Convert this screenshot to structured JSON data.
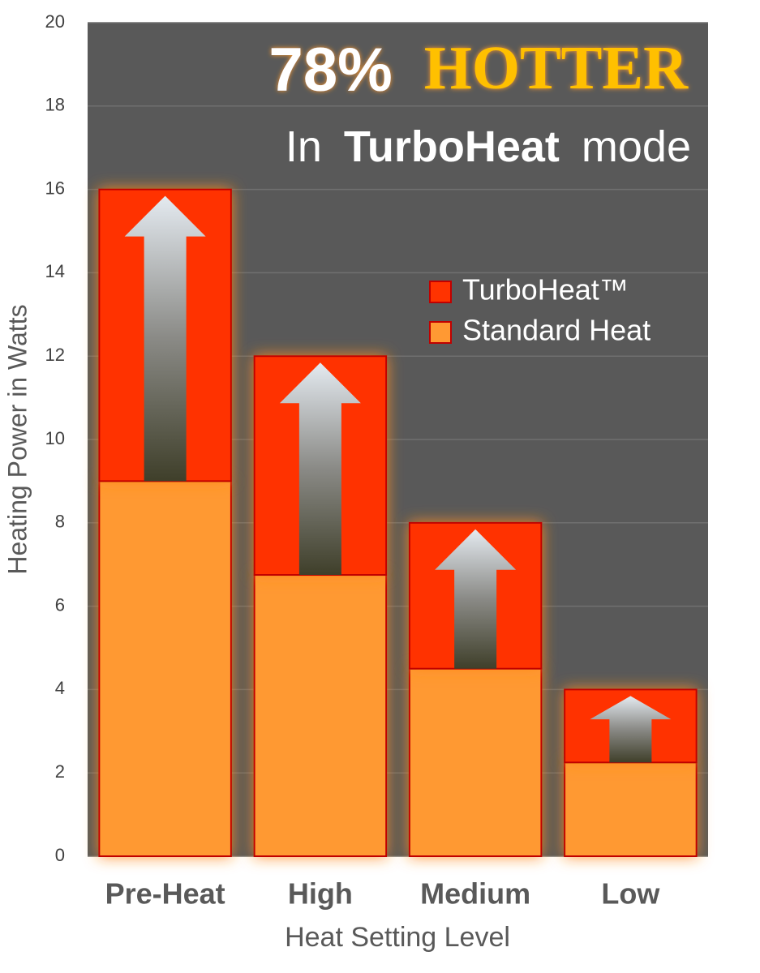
{
  "chart_data": {
    "type": "stacked_bar",
    "title": [
      "78%",
      "HOTTER"
    ],
    "subtitle": [
      "In",
      "TurboHeat",
      "mode"
    ],
    "x_label": "Heat Setting Level",
    "y_label": "Heating Power in Watts",
    "categories": [
      "Pre-Heat",
      "High",
      "Medium",
      "Low"
    ],
    "series": [
      {
        "name": "Standard Heat",
        "color": "#ff9933",
        "values": [
          9,
          6.75,
          4.5,
          2.25
        ]
      },
      {
        "name": "TurboHeat™",
        "color": "#ff3300",
        "values": [
          7,
          5.25,
          3.5,
          1.75
        ]
      }
    ],
    "legend_order": [
      1,
      0
    ],
    "ylim": [
      0,
      20
    ],
    "yticks": [
      0,
      2,
      4,
      6,
      8,
      10,
      12,
      14,
      16,
      18,
      20
    ],
    "grid": true
  }
}
